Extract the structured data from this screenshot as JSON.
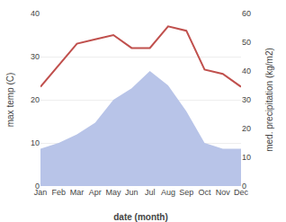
{
  "chart_data": {
    "type": "line",
    "xlabel": "date (month)",
    "ylabel": "max temp (C)",
    "y2label": "med. precipitation (kg/m2)",
    "categories": [
      "Jan",
      "Feb",
      "Mar",
      "Apr",
      "May",
      "Jun",
      "Jul",
      "Aug",
      "Sep",
      "Oct",
      "Nov",
      "Dec"
    ],
    "series": [
      {
        "type": "area",
        "axis": "y2",
        "color": "#b8c4e8",
        "values": [
          13,
          15,
          18,
          22,
          30,
          34,
          40,
          35,
          26,
          15,
          13,
          13
        ]
      },
      {
        "type": "line",
        "color": "#c0504d",
        "values": [
          23,
          28,
          33,
          34,
          35,
          32,
          32,
          37,
          36,
          27,
          26,
          23
        ]
      }
    ],
    "ylim": [
      0,
      40
    ],
    "yticks": [
      0,
      10,
      20,
      30,
      40
    ],
    "y2lim": [
      0,
      60
    ],
    "y2ticks": [
      0,
      10,
      20,
      30,
      40,
      50,
      60
    ],
    "grid": true
  }
}
